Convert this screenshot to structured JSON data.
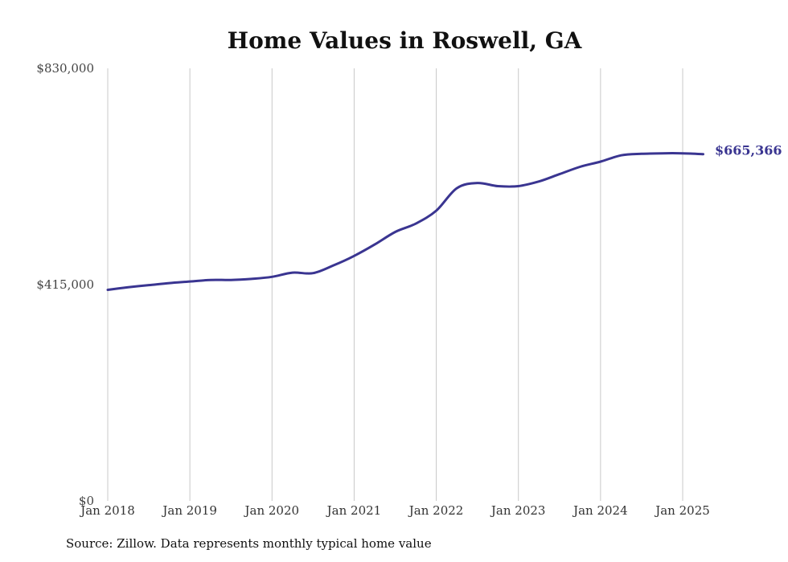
{
  "chart_data": {
    "type": "line",
    "title": "Home Values in Roswell, GA",
    "xlabel": "",
    "ylabel": "",
    "ylim": [
      0,
      830000
    ],
    "yticks": [
      0,
      415000,
      830000
    ],
    "ytick_labels": [
      "$0",
      "$415,000",
      "$830,000"
    ],
    "xticks": [
      "2018-01",
      "2019-01",
      "2020-01",
      "2021-01",
      "2022-01",
      "2023-01",
      "2024-01",
      "2025-01"
    ],
    "xtick_labels": [
      "Jan 2018",
      "Jan 2019",
      "Jan 2020",
      "Jan 2021",
      "Jan 2022",
      "Jan 2023",
      "Jan 2024",
      "Jan 2025"
    ],
    "grid": "vertical",
    "line_color": "#3a3591",
    "end_label": "$665,366",
    "series": [
      {
        "x": [
          "2018-01",
          "2018-04",
          "2018-07",
          "2018-10",
          "2019-01",
          "2019-04",
          "2019-07",
          "2019-10",
          "2020-01",
          "2020-04",
          "2020-07",
          "2020-10",
          "2021-01",
          "2021-04",
          "2021-07",
          "2021-10",
          "2022-01",
          "2022-04",
          "2022-07",
          "2022-10",
          "2023-01",
          "2023-04",
          "2023-07",
          "2023-10",
          "2024-01",
          "2024-04",
          "2024-07",
          "2024-10",
          "2025-01",
          "2025-04"
        ],
        "values": [
          405000,
          410000,
          414000,
          418000,
          421000,
          424000,
          424000,
          426000,
          430000,
          438000,
          437000,
          452000,
          470000,
          492000,
          516000,
          532000,
          557000,
          600000,
          610000,
          604000,
          604000,
          613000,
          627000,
          641000,
          651000,
          663000,
          666000,
          667000,
          667000,
          665366
        ]
      }
    ]
  },
  "source_note": "Source: Zillow. Data represents monthly typical home value"
}
